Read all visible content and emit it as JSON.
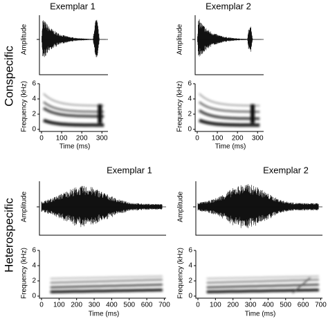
{
  "rows": [
    {
      "label": "Conspecific",
      "panels": [
        {
          "title": "Exemplar 1",
          "wave_ylabel": "Amplitude",
          "spec_ylabel": "Frequency (kHz)",
          "xlabel": "Time (ms)",
          "xlim": [
            0,
            330
          ],
          "xticks": [
            0,
            100,
            200,
            300
          ],
          "ylim": [
            0,
            6
          ],
          "yticks": [
            0,
            2,
            4,
            6
          ]
        },
        {
          "title": "Exemplar 2",
          "wave_ylabel": "Amplitude",
          "spec_ylabel": "Frequency (kHz)",
          "xlabel": "Time (ms)",
          "xlim": [
            0,
            330
          ],
          "xticks": [
            0,
            100,
            200,
            300
          ],
          "ylim": [
            0,
            6
          ],
          "yticks": [
            0,
            2,
            4,
            6
          ]
        }
      ]
    },
    {
      "label": "Heterospecific",
      "panels": [
        {
          "title": "Exemplar 1",
          "wave_ylabel": "Amplitude",
          "spec_ylabel": "Frequency (kHz)",
          "xlabel": "Time (ms)",
          "xlim": [
            0,
            710
          ],
          "xticks": [
            0,
            100,
            200,
            300,
            400,
            500,
            600,
            700
          ],
          "ylim": [
            0,
            6
          ],
          "yticks": [
            0,
            2,
            4,
            6
          ]
        },
        {
          "title": "Exemplar 2",
          "wave_ylabel": "Amplitude",
          "spec_ylabel": "Frequency (kHz)",
          "xlabel": "Time (ms)",
          "xlim": [
            0,
            710
          ],
          "xticks": [
            0,
            100,
            200,
            300,
            400,
            500,
            600,
            700
          ],
          "ylim": [
            0,
            6
          ],
          "yticks": [
            0,
            2,
            4,
            6
          ]
        }
      ]
    }
  ]
}
